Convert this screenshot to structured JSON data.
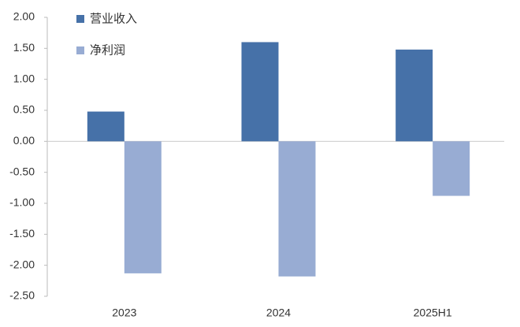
{
  "chart_data": {
    "type": "bar",
    "categories": [
      "2023",
      "2024",
      "2025H1"
    ],
    "series": [
      {
        "name": "营业收入",
        "color": "#4671a8",
        "values": [
          0.48,
          1.6,
          1.48
        ]
      },
      {
        "name": "净利润",
        "color": "#98acd3",
        "values": [
          -2.13,
          -2.18,
          -0.88
        ]
      }
    ],
    "ylim": [
      -2.5,
      2.0
    ],
    "yticks": [
      {
        "value": 2.0,
        "label": "2.00"
      },
      {
        "value": 1.5,
        "label": "1.50"
      },
      {
        "value": 1.0,
        "label": "1.00"
      },
      {
        "value": 0.5,
        "label": "0.50"
      },
      {
        "value": 0,
        "label": "0.00"
      },
      {
        "value": -0.5,
        "label": "-0.50"
      },
      {
        "value": -1.0,
        "label": "-1.00"
      },
      {
        "value": -1.5,
        "label": "-1.50"
      },
      {
        "value": -2.0,
        "label": "-2.00"
      },
      {
        "value": -2.5,
        "label": "-2.50"
      }
    ],
    "legend": "top-left"
  }
}
